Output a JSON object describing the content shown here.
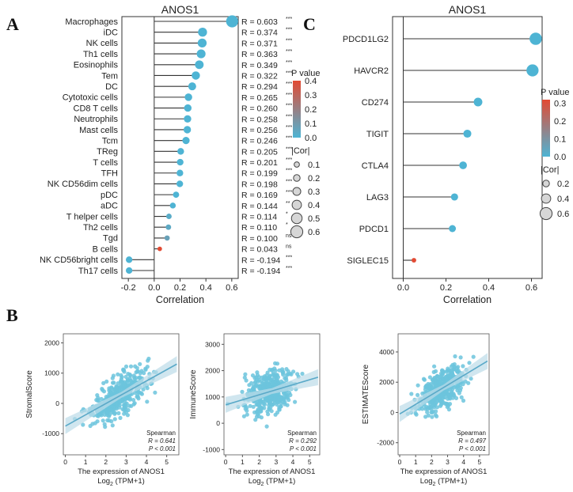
{
  "panels": {
    "a": "A",
    "b": "B",
    "c": "C"
  },
  "colors": {
    "dot": "#4eb4d4",
    "hot": "#e24a33",
    "scatter": "#6cc4dd",
    "fit": "#5aa9c8",
    "band": "#bcdce8"
  },
  "chart_data": [
    {
      "id": "A",
      "type": "lollipop",
      "title": "ANOS1",
      "xlabel": "Correlation",
      "xlim": [
        -0.25,
        0.65
      ],
      "xticks": [
        "-0.2",
        "0.0",
        "0.2",
        "0.4",
        "0.6"
      ],
      "xtick_values": [
        -0.2,
        0.0,
        0.2,
        0.4,
        0.6
      ],
      "categories": [
        "Macrophages",
        "iDC",
        "NK cells",
        "Th1 cells",
        "Eosinophils",
        "Tem",
        "DC",
        "Cytotoxic cells",
        "CD8 T cells",
        "Neutrophils",
        "Mast cells",
        "Tcm",
        "TReg",
        "T cells",
        "TFH",
        "NK CD56dim cells",
        "pDC",
        "aDC",
        "T helper cells",
        "Th2 cells",
        "Tgd",
        "B cells",
        "NK CD56bright cells",
        "Th17 cells"
      ],
      "values": [
        0.603,
        0.374,
        0.371,
        0.363,
        0.349,
        0.322,
        0.294,
        0.265,
        0.26,
        0.258,
        0.256,
        0.246,
        0.205,
        0.201,
        0.199,
        0.198,
        0.169,
        0.144,
        0.114,
        0.11,
        0.1,
        0.043,
        -0.194,
        -0.194
      ],
      "pvalues": [
        0.0,
        0.0,
        0.0,
        0.0,
        0.0,
        0.0,
        0.0,
        0.0,
        0.0,
        0.0,
        0.0,
        0.0,
        0.0,
        0.0,
        0.0,
        0.0,
        0.0,
        0.002,
        0.03,
        0.04,
        0.07,
        0.4,
        0.0,
        0.0
      ],
      "r_labels": [
        "R = 0.603",
        "R = 0.374",
        "R = 0.371",
        "R = 0.363",
        "R = 0.349",
        "R = 0.322",
        "R = 0.294",
        "R = 0.265",
        "R = 0.260",
        "R = 0.258",
        "R = 0.256",
        "R = 0.246",
        "R = 0.205",
        "R = 0.201",
        "R = 0.199",
        "R = 0.198",
        "R = 0.169",
        "R = 0.144",
        "R = 0.114",
        "R = 0.110",
        "R = 0.100",
        "R = 0.043",
        "R = -0.194",
        "R = -0.194"
      ],
      "sig": [
        "***",
        "***",
        "***",
        "***",
        "***",
        "***",
        "***",
        "***",
        "***",
        "***",
        "***",
        "***",
        "***",
        "***",
        "***",
        "***",
        "***",
        "**",
        "*",
        "*",
        "ns",
        "ns",
        "***",
        "***"
      ],
      "pmax": 0.4,
      "legend": {
        "p_title": "P value",
        "p_ticks": [
          "0.4",
          "0.3",
          "0.2",
          "0.1",
          "0.0"
        ],
        "p_tick_values": [
          0.4,
          0.3,
          0.2,
          0.1,
          0.0
        ],
        "cor_title": "|Cor|",
        "cor_labels": [
          "0.1",
          "0.2",
          "0.3",
          "0.4",
          "0.5",
          "0.6"
        ],
        "cor_values": [
          0.1,
          0.2,
          0.3,
          0.4,
          0.5,
          0.6
        ]
      }
    },
    {
      "id": "C",
      "type": "lollipop",
      "title": "ANOS1",
      "xlabel": "Correlation",
      "xlim": [
        -0.05,
        0.65
      ],
      "xticks": [
        "0.0",
        "0.2",
        "0.4",
        "0.6"
      ],
      "xtick_values": [
        0.0,
        0.2,
        0.4,
        0.6
      ],
      "categories": [
        "PDCD1LG2",
        "HAVCR2",
        "CD274",
        "TIGIT",
        "CTLA4",
        "LAG3",
        "PDCD1",
        "SIGLEC15"
      ],
      "values": [
        0.62,
        0.605,
        0.35,
        0.3,
        0.28,
        0.24,
        0.23,
        0.05
      ],
      "pvalues": [
        0.0,
        0.0,
        0.0,
        0.0,
        0.0,
        0.0,
        0.0,
        0.32
      ],
      "pmax": 0.32,
      "legend": {
        "p_title": "P value",
        "p_ticks": [
          "0.3",
          "0.2",
          "0.1",
          "0.0"
        ],
        "p_tick_values": [
          0.3,
          0.2,
          0.1,
          0.0
        ],
        "cor_title": "|Cor|",
        "cor_labels": [
          "0.2",
          "0.4",
          "0.6"
        ],
        "cor_values": [
          0.2,
          0.4,
          0.6
        ]
      }
    },
    {
      "id": "B1",
      "type": "scatter",
      "ylabel": "StromalScore",
      "xlabel_line1": "The expression of ANOS1",
      "xlabel_line2": "Log",
      "xlabel_sub": "2",
      "xlabel_tail": " (TPM+1)",
      "xlim": [
        -0.1,
        5.6
      ],
      "ylim": [
        -1700,
        2300
      ],
      "xticks": [
        "0",
        "1",
        "2",
        "3",
        "4",
        "5"
      ],
      "xtick_values": [
        0,
        1,
        2,
        3,
        4,
        5
      ],
      "yticks": [
        "-1000",
        "0",
        "1000",
        "2000"
      ],
      "ytick_values": [
        -1000,
        0,
        1000,
        2000
      ],
      "fit": {
        "x": [
          0.0,
          5.5
        ],
        "y": [
          -750,
          1300
        ]
      },
      "n_points": 420,
      "seed": 7,
      "noise": 620,
      "stats": {
        "method": "Spearman",
        "r": "R = 0.641",
        "p": "P < 0.001"
      }
    },
    {
      "id": "B2",
      "type": "scatter",
      "ylabel": "ImmuneScore",
      "xlabel_line1": "The expression of ANOS1",
      "xlabel_line2": "Log",
      "xlabel_sub": "2",
      "xlabel_tail": " (TPM+1)",
      "xlim": [
        -0.1,
        5.6
      ],
      "ylim": [
        -1200,
        3400
      ],
      "xticks": [
        "0",
        "1",
        "2",
        "3",
        "4",
        "5"
      ],
      "xtick_values": [
        0,
        1,
        2,
        3,
        4,
        5
      ],
      "yticks": [
        "-1000",
        "0",
        "1000",
        "2000",
        "3000"
      ],
      "ytick_values": [
        -1000,
        0,
        1000,
        2000,
        3000
      ],
      "fit": {
        "x": [
          0.0,
          5.5
        ],
        "y": [
          700,
          1750
        ]
      },
      "n_points": 420,
      "seed": 19,
      "noise": 820,
      "stats": {
        "method": "Spearman",
        "r": "R = 0.292",
        "p": "P < 0.001"
      }
    },
    {
      "id": "B3",
      "type": "scatter",
      "ylabel": "ESTIMATEScore",
      "xlabel_line1": "The expression of ANOS1",
      "xlabel_line2": "Log",
      "xlabel_sub": "2",
      "xlabel_tail": " (TPM+1)",
      "xlim": [
        -0.1,
        5.6
      ],
      "ylim": [
        -2800,
        5200
      ],
      "xticks": [
        "0",
        "1",
        "2",
        "3",
        "4",
        "5"
      ],
      "xtick_values": [
        0,
        1,
        2,
        3,
        4,
        5
      ],
      "yticks": [
        "-2000",
        "0",
        "2000",
        "4000"
      ],
      "ytick_values": [
        -2000,
        0,
        2000,
        4000
      ],
      "fit": {
        "x": [
          0.0,
          5.5
        ],
        "y": [
          -100,
          3400
        ]
      },
      "n_points": 420,
      "seed": 31,
      "noise": 1300,
      "stats": {
        "method": "Spearman",
        "r": "R = 0.497",
        "p": "P < 0.001"
      }
    }
  ]
}
